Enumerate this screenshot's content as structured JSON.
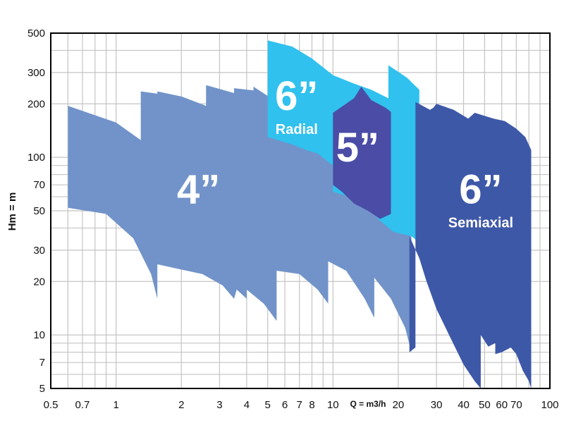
{
  "chart_data": {
    "type": "area",
    "title": "",
    "xlabel": "Q = m3/h",
    "ylabel": "Hm = m",
    "x_scale": "log",
    "y_scale": "log",
    "xlim": [
      0.5,
      100
    ],
    "ylim": [
      5,
      500
    ],
    "grid": true,
    "x_ticks": [
      0.5,
      0.7,
      1,
      2,
      3,
      4,
      5,
      6,
      7,
      8,
      10,
      20,
      30,
      40,
      50,
      60,
      70,
      100
    ],
    "x_tick_labels": [
      "0.5",
      "0.7",
      "1",
      "2",
      "3",
      "4",
      "5",
      "6",
      "7",
      "8",
      "10",
      "20",
      "30",
      "40",
      "50",
      "60",
      "70",
      "100"
    ],
    "y_ticks": [
      5,
      7,
      10,
      20,
      30,
      50,
      70,
      100,
      200,
      300,
      500
    ],
    "y_tick_labels": [
      "5",
      "7",
      "10",
      "20",
      "30",
      "50",
      "70",
      "100",
      "200",
      "300",
      "500"
    ],
    "zones": [
      {
        "name": "4”",
        "subtitle": "",
        "color": "#7193c9",
        "label_at": [
          2.4,
          55
        ],
        "outline": [
          [
            0.6,
            195
          ],
          [
            1.0,
            157
          ],
          [
            1.3,
            125
          ],
          [
            1.3,
            235
          ],
          [
            1.55,
            228
          ],
          [
            1.55,
            235
          ],
          [
            2.0,
            220
          ],
          [
            2.6,
            195
          ],
          [
            2.6,
            255
          ],
          [
            3.5,
            230
          ],
          [
            3.5,
            245
          ],
          [
            4.3,
            238
          ],
          [
            4.3,
            250
          ],
          [
            5.2,
            215
          ],
          [
            7.0,
            175
          ],
          [
            10.0,
            150
          ],
          [
            20.0,
            130
          ],
          [
            23.0,
            120
          ],
          [
            23.0,
            8.0
          ],
          [
            21.5,
            11
          ],
          [
            18.5,
            16
          ],
          [
            15.5,
            21
          ],
          [
            15.5,
            12.5
          ],
          [
            14.0,
            16
          ],
          [
            11.5,
            23
          ],
          [
            9.5,
            26
          ],
          [
            9.5,
            15
          ],
          [
            8.5,
            18
          ],
          [
            7.0,
            22
          ],
          [
            5.5,
            23
          ],
          [
            5.5,
            12
          ],
          [
            4.8,
            15
          ],
          [
            4.0,
            18
          ],
          [
            4.0,
            16
          ],
          [
            3.6,
            18
          ],
          [
            3.5,
            16
          ],
          [
            3.1,
            19
          ],
          [
            2.5,
            22
          ],
          [
            1.55,
            25
          ],
          [
            1.55,
            16
          ],
          [
            1.45,
            22
          ],
          [
            1.2,
            35
          ],
          [
            0.9,
            48
          ],
          [
            0.6,
            52
          ]
        ]
      },
      {
        "name": "6”",
        "subtitle": "Radial",
        "color": "#30c1ee",
        "label_at": [
          6.8,
          185
        ],
        "outline": [
          [
            5.0,
            455
          ],
          [
            6.5,
            420
          ],
          [
            8.0,
            360
          ],
          [
            10.0,
            290
          ],
          [
            12.5,
            260
          ],
          [
            15.0,
            240
          ],
          [
            18.0,
            215
          ],
          [
            18.0,
            330
          ],
          [
            22.0,
            280
          ],
          [
            23.0,
            265
          ],
          [
            25.0,
            240
          ],
          [
            25.0,
            33
          ],
          [
            23.0,
            36
          ],
          [
            19.0,
            38
          ],
          [
            16.5,
            44
          ],
          [
            15.0,
            50
          ],
          [
            13.0,
            58
          ],
          [
            10.0,
            64
          ],
          [
            10.0,
            90
          ],
          [
            8.5,
            105
          ],
          [
            7.5,
            110
          ],
          [
            6.5,
            118
          ],
          [
            5.0,
            130
          ]
        ]
      },
      {
        "name": "5”",
        "subtitle": "",
        "color": "#4a4ca6",
        "label_at": [
          13.0,
          95
        ],
        "outline": [
          [
            10.0,
            178
          ],
          [
            12.5,
            215
          ],
          [
            13.5,
            250
          ],
          [
            15.0,
            210
          ],
          [
            17.5,
            190
          ],
          [
            18.5,
            180
          ],
          [
            18.5,
            48
          ],
          [
            16.5,
            45
          ],
          [
            14.5,
            50
          ],
          [
            12.5,
            55
          ],
          [
            11.0,
            64
          ],
          [
            10.0,
            70
          ]
        ]
      },
      {
        "name": "6”",
        "subtitle": "Semiaxial",
        "color": "#3e58a8",
        "label_at": [
          48.0,
          55
        ],
        "outline": [
          [
            24.0,
            205
          ],
          [
            28.0,
            185
          ],
          [
            29.0,
            190
          ],
          [
            30.0,
            200
          ],
          [
            36.0,
            185
          ],
          [
            42.0,
            165
          ],
          [
            45.0,
            178
          ],
          [
            55.0,
            165
          ],
          [
            62.0,
            160
          ],
          [
            70.0,
            145
          ],
          [
            77.0,
            130
          ],
          [
            82.0,
            110
          ],
          [
            82.0,
            5.0
          ],
          [
            80.0,
            5.5
          ],
          [
            75.0,
            6.3
          ],
          [
            70.0,
            7.8
          ],
          [
            66.0,
            8.5
          ],
          [
            60.0,
            8.0
          ],
          [
            56.0,
            7.8
          ],
          [
            56.0,
            9.0
          ],
          [
            52.0,
            8.6
          ],
          [
            48.0,
            10.0
          ],
          [
            48.0,
            5.0
          ],
          [
            45.0,
            5.5
          ],
          [
            40.0,
            6.8
          ],
          [
            35.0,
            9.5
          ],
          [
            30.0,
            14
          ],
          [
            27.0,
            20
          ],
          [
            25.0,
            27
          ],
          [
            22.5,
            36
          ],
          [
            22.5,
            8.0
          ],
          [
            24.0,
            8.5
          ]
        ]
      }
    ]
  }
}
